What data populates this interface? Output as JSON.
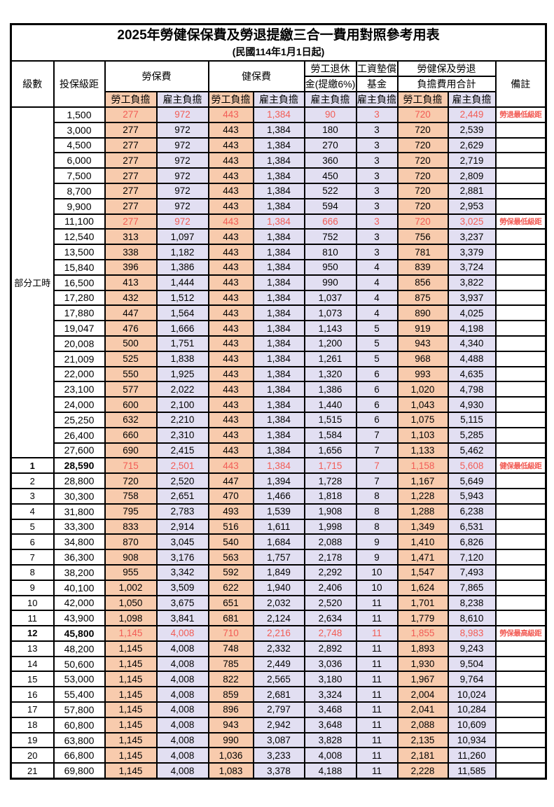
{
  "title": {
    "line1": "2025年勞健保保費及勞退提繳三合一費用對照參考用表",
    "line2": "(民國114年1月1日起)"
  },
  "colors": {
    "worker_bg": "#F8CBAD",
    "employer_bg": "#E2DFF2",
    "highlight_red": "#F25C55",
    "border": "#000000"
  },
  "header": {
    "level": "級數",
    "bracket": "投保級距",
    "labor_fee": "勞保費",
    "health_fee": "健保費",
    "pension_line1": "勞工退休",
    "pension_line2": "金(提繳6%)",
    "wage_fund_line1": "工資墊償",
    "wage_fund_line2": "基金",
    "total_line1": "勞健保及勞退",
    "total_line2": "負擔費用合計",
    "remark": "備註",
    "worker": "勞工負擔",
    "employer": "雇主負擔"
  },
  "part_time_label": "部分工時",
  "value_columns": [
    "勞保費-勞工負擔",
    "勞保費-雇主負擔",
    "健保費-勞工負擔",
    "健保費-雇主負擔",
    "勞工退休金(提繳6%)-雇主負擔",
    "工資墊償基金-雇主負擔",
    "合計-勞工負擔",
    "合計-雇主負擔"
  ],
  "rows": [
    {
      "level": null,
      "bracket": "1,500",
      "v": [
        "277",
        "972",
        "443",
        "1,384",
        "90",
        "3",
        "720",
        "2,449"
      ],
      "note": "勞退最低級距",
      "red": true,
      "bold": false
    },
    {
      "level": null,
      "bracket": "3,000",
      "v": [
        "277",
        "972",
        "443",
        "1,384",
        "180",
        "3",
        "720",
        "2,539"
      ],
      "note": "",
      "red": false,
      "bold": false
    },
    {
      "level": null,
      "bracket": "4,500",
      "v": [
        "277",
        "972",
        "443",
        "1,384",
        "270",
        "3",
        "720",
        "2,629"
      ],
      "note": "",
      "red": false,
      "bold": false
    },
    {
      "level": null,
      "bracket": "6,000",
      "v": [
        "277",
        "972",
        "443",
        "1,384",
        "360",
        "3",
        "720",
        "2,719"
      ],
      "note": "",
      "red": false,
      "bold": false
    },
    {
      "level": null,
      "bracket": "7,500",
      "v": [
        "277",
        "972",
        "443",
        "1,384",
        "450",
        "3",
        "720",
        "2,809"
      ],
      "note": "",
      "red": false,
      "bold": false
    },
    {
      "level": null,
      "bracket": "8,700",
      "v": [
        "277",
        "972",
        "443",
        "1,384",
        "522",
        "3",
        "720",
        "2,881"
      ],
      "note": "",
      "red": false,
      "bold": false
    },
    {
      "level": null,
      "bracket": "9,900",
      "v": [
        "277",
        "972",
        "443",
        "1,384",
        "594",
        "3",
        "720",
        "2,953"
      ],
      "note": "",
      "red": false,
      "bold": false
    },
    {
      "level": null,
      "bracket": "11,100",
      "v": [
        "277",
        "972",
        "443",
        "1,384",
        "666",
        "3",
        "720",
        "3,025"
      ],
      "note": "勞保最低級距",
      "red": true,
      "bold": false
    },
    {
      "level": null,
      "bracket": "12,540",
      "v": [
        "313",
        "1,097",
        "443",
        "1,384",
        "752",
        "3",
        "756",
        "3,237"
      ],
      "note": "",
      "red": false,
      "bold": false
    },
    {
      "level": null,
      "bracket": "13,500",
      "v": [
        "338",
        "1,182",
        "443",
        "1,384",
        "810",
        "3",
        "781",
        "3,379"
      ],
      "note": "",
      "red": false,
      "bold": false
    },
    {
      "level": null,
      "bracket": "15,840",
      "v": [
        "396",
        "1,386",
        "443",
        "1,384",
        "950",
        "4",
        "839",
        "3,724"
      ],
      "note": "",
      "red": false,
      "bold": false
    },
    {
      "level": null,
      "bracket": "16,500",
      "v": [
        "413",
        "1,444",
        "443",
        "1,384",
        "990",
        "4",
        "856",
        "3,822"
      ],
      "note": "",
      "red": false,
      "bold": false
    },
    {
      "level": null,
      "bracket": "17,280",
      "v": [
        "432",
        "1,512",
        "443",
        "1,384",
        "1,037",
        "4",
        "875",
        "3,937"
      ],
      "note": "",
      "red": false,
      "bold": false
    },
    {
      "level": null,
      "bracket": "17,880",
      "v": [
        "447",
        "1,564",
        "443",
        "1,384",
        "1,073",
        "4",
        "890",
        "4,025"
      ],
      "note": "",
      "red": false,
      "bold": false
    },
    {
      "level": null,
      "bracket": "19,047",
      "v": [
        "476",
        "1,666",
        "443",
        "1,384",
        "1,143",
        "5",
        "919",
        "4,198"
      ],
      "note": "",
      "red": false,
      "bold": false
    },
    {
      "level": null,
      "bracket": "20,008",
      "v": [
        "500",
        "1,751",
        "443",
        "1,384",
        "1,200",
        "5",
        "943",
        "4,340"
      ],
      "note": "",
      "red": false,
      "bold": false
    },
    {
      "level": null,
      "bracket": "21,009",
      "v": [
        "525",
        "1,838",
        "443",
        "1,384",
        "1,261",
        "5",
        "968",
        "4,488"
      ],
      "note": "",
      "red": false,
      "bold": false
    },
    {
      "level": null,
      "bracket": "22,000",
      "v": [
        "550",
        "1,925",
        "443",
        "1,384",
        "1,320",
        "6",
        "993",
        "4,635"
      ],
      "note": "",
      "red": false,
      "bold": false
    },
    {
      "level": null,
      "bracket": "23,100",
      "v": [
        "577",
        "2,022",
        "443",
        "1,384",
        "1,386",
        "6",
        "1,020",
        "4,798"
      ],
      "note": "",
      "red": false,
      "bold": false
    },
    {
      "level": null,
      "bracket": "24,000",
      "v": [
        "600",
        "2,100",
        "443",
        "1,384",
        "1,440",
        "6",
        "1,043",
        "4,930"
      ],
      "note": "",
      "red": false,
      "bold": false
    },
    {
      "level": null,
      "bracket": "25,250",
      "v": [
        "632",
        "2,210",
        "443",
        "1,384",
        "1,515",
        "6",
        "1,075",
        "5,115"
      ],
      "note": "",
      "red": false,
      "bold": false
    },
    {
      "level": null,
      "bracket": "26,400",
      "v": [
        "660",
        "2,310",
        "443",
        "1,384",
        "1,584",
        "7",
        "1,103",
        "5,285"
      ],
      "note": "",
      "red": false,
      "bold": false
    },
    {
      "level": null,
      "bracket": "27,600",
      "v": [
        "690",
        "2,415",
        "443",
        "1,384",
        "1,656",
        "7",
        "1,133",
        "5,462"
      ],
      "note": "",
      "red": false,
      "bold": false
    },
    {
      "level": "1",
      "bracket": "28,590",
      "v": [
        "715",
        "2,501",
        "443",
        "1,384",
        "1,715",
        "7",
        "1,158",
        "5,608"
      ],
      "note": "健保最低級距",
      "red": true,
      "bold": true
    },
    {
      "level": "2",
      "bracket": "28,800",
      "v": [
        "720",
        "2,520",
        "447",
        "1,394",
        "1,728",
        "7",
        "1,167",
        "5,649"
      ],
      "note": "",
      "red": false,
      "bold": false
    },
    {
      "level": "3",
      "bracket": "30,300",
      "v": [
        "758",
        "2,651",
        "470",
        "1,466",
        "1,818",
        "8",
        "1,228",
        "5,943"
      ],
      "note": "",
      "red": false,
      "bold": false
    },
    {
      "level": "4",
      "bracket": "31,800",
      "v": [
        "795",
        "2,783",
        "493",
        "1,539",
        "1,908",
        "8",
        "1,288",
        "6,238"
      ],
      "note": "",
      "red": false,
      "bold": false
    },
    {
      "level": "5",
      "bracket": "33,300",
      "v": [
        "833",
        "2,914",
        "516",
        "1,611",
        "1,998",
        "8",
        "1,349",
        "6,531"
      ],
      "note": "",
      "red": false,
      "bold": false
    },
    {
      "level": "6",
      "bracket": "34,800",
      "v": [
        "870",
        "3,045",
        "540",
        "1,684",
        "2,088",
        "9",
        "1,410",
        "6,826"
      ],
      "note": "",
      "red": false,
      "bold": false
    },
    {
      "level": "7",
      "bracket": "36,300",
      "v": [
        "908",
        "3,176",
        "563",
        "1,757",
        "2,178",
        "9",
        "1,471",
        "7,120"
      ],
      "note": "",
      "red": false,
      "bold": false
    },
    {
      "level": "8",
      "bracket": "38,200",
      "v": [
        "955",
        "3,342",
        "592",
        "1,849",
        "2,292",
        "10",
        "1,547",
        "7,493"
      ],
      "note": "",
      "red": false,
      "bold": false
    },
    {
      "level": "9",
      "bracket": "40,100",
      "v": [
        "1,002",
        "3,509",
        "622",
        "1,940",
        "2,406",
        "10",
        "1,624",
        "7,865"
      ],
      "note": "",
      "red": false,
      "bold": false
    },
    {
      "level": "10",
      "bracket": "42,000",
      "v": [
        "1,050",
        "3,675",
        "651",
        "2,032",
        "2,520",
        "11",
        "1,701",
        "8,238"
      ],
      "note": "",
      "red": false,
      "bold": false
    },
    {
      "level": "11",
      "bracket": "43,900",
      "v": [
        "1,098",
        "3,841",
        "681",
        "2,124",
        "2,634",
        "11",
        "1,779",
        "8,610"
      ],
      "note": "",
      "red": false,
      "bold": false
    },
    {
      "level": "12",
      "bracket": "45,800",
      "v": [
        "1,145",
        "4,008",
        "710",
        "2,216",
        "2,748",
        "11",
        "1,855",
        "8,983"
      ],
      "note": "勞保最高級距",
      "red": true,
      "bold": true
    },
    {
      "level": "13",
      "bracket": "48,200",
      "v": [
        "1,145",
        "4,008",
        "748",
        "2,332",
        "2,892",
        "11",
        "1,893",
        "9,243"
      ],
      "note": "",
      "red": false,
      "bold": false
    },
    {
      "level": "14",
      "bracket": "50,600",
      "v": [
        "1,145",
        "4,008",
        "785",
        "2,449",
        "3,036",
        "11",
        "1,930",
        "9,504"
      ],
      "note": "",
      "red": false,
      "bold": false
    },
    {
      "level": "15",
      "bracket": "53,000",
      "v": [
        "1,145",
        "4,008",
        "822",
        "2,565",
        "3,180",
        "11",
        "1,967",
        "9,764"
      ],
      "note": "",
      "red": false,
      "bold": false
    },
    {
      "level": "16",
      "bracket": "55,400",
      "v": [
        "1,145",
        "4,008",
        "859",
        "2,681",
        "3,324",
        "11",
        "2,004",
        "10,024"
      ],
      "note": "",
      "red": false,
      "bold": false
    },
    {
      "level": "17",
      "bracket": "57,800",
      "v": [
        "1,145",
        "4,008",
        "896",
        "2,797",
        "3,468",
        "11",
        "2,041",
        "10,284"
      ],
      "note": "",
      "red": false,
      "bold": false
    },
    {
      "level": "18",
      "bracket": "60,800",
      "v": [
        "1,145",
        "4,008",
        "943",
        "2,942",
        "3,648",
        "11",
        "2,088",
        "10,609"
      ],
      "note": "",
      "red": false,
      "bold": false
    },
    {
      "level": "19",
      "bracket": "63,800",
      "v": [
        "1,145",
        "4,008",
        "990",
        "3,087",
        "3,828",
        "11",
        "2,135",
        "10,934"
      ],
      "note": "",
      "red": false,
      "bold": false
    },
    {
      "level": "20",
      "bracket": "66,800",
      "v": [
        "1,145",
        "4,008",
        "1,036",
        "3,233",
        "4,008",
        "11",
        "2,181",
        "11,260"
      ],
      "note": "",
      "red": false,
      "bold": false
    },
    {
      "level": "21",
      "bracket": "69,800",
      "v": [
        "1,145",
        "4,008",
        "1,083",
        "3,378",
        "4,188",
        "11",
        "2,228",
        "11,585"
      ],
      "note": "",
      "red": false,
      "bold": false
    }
  ]
}
